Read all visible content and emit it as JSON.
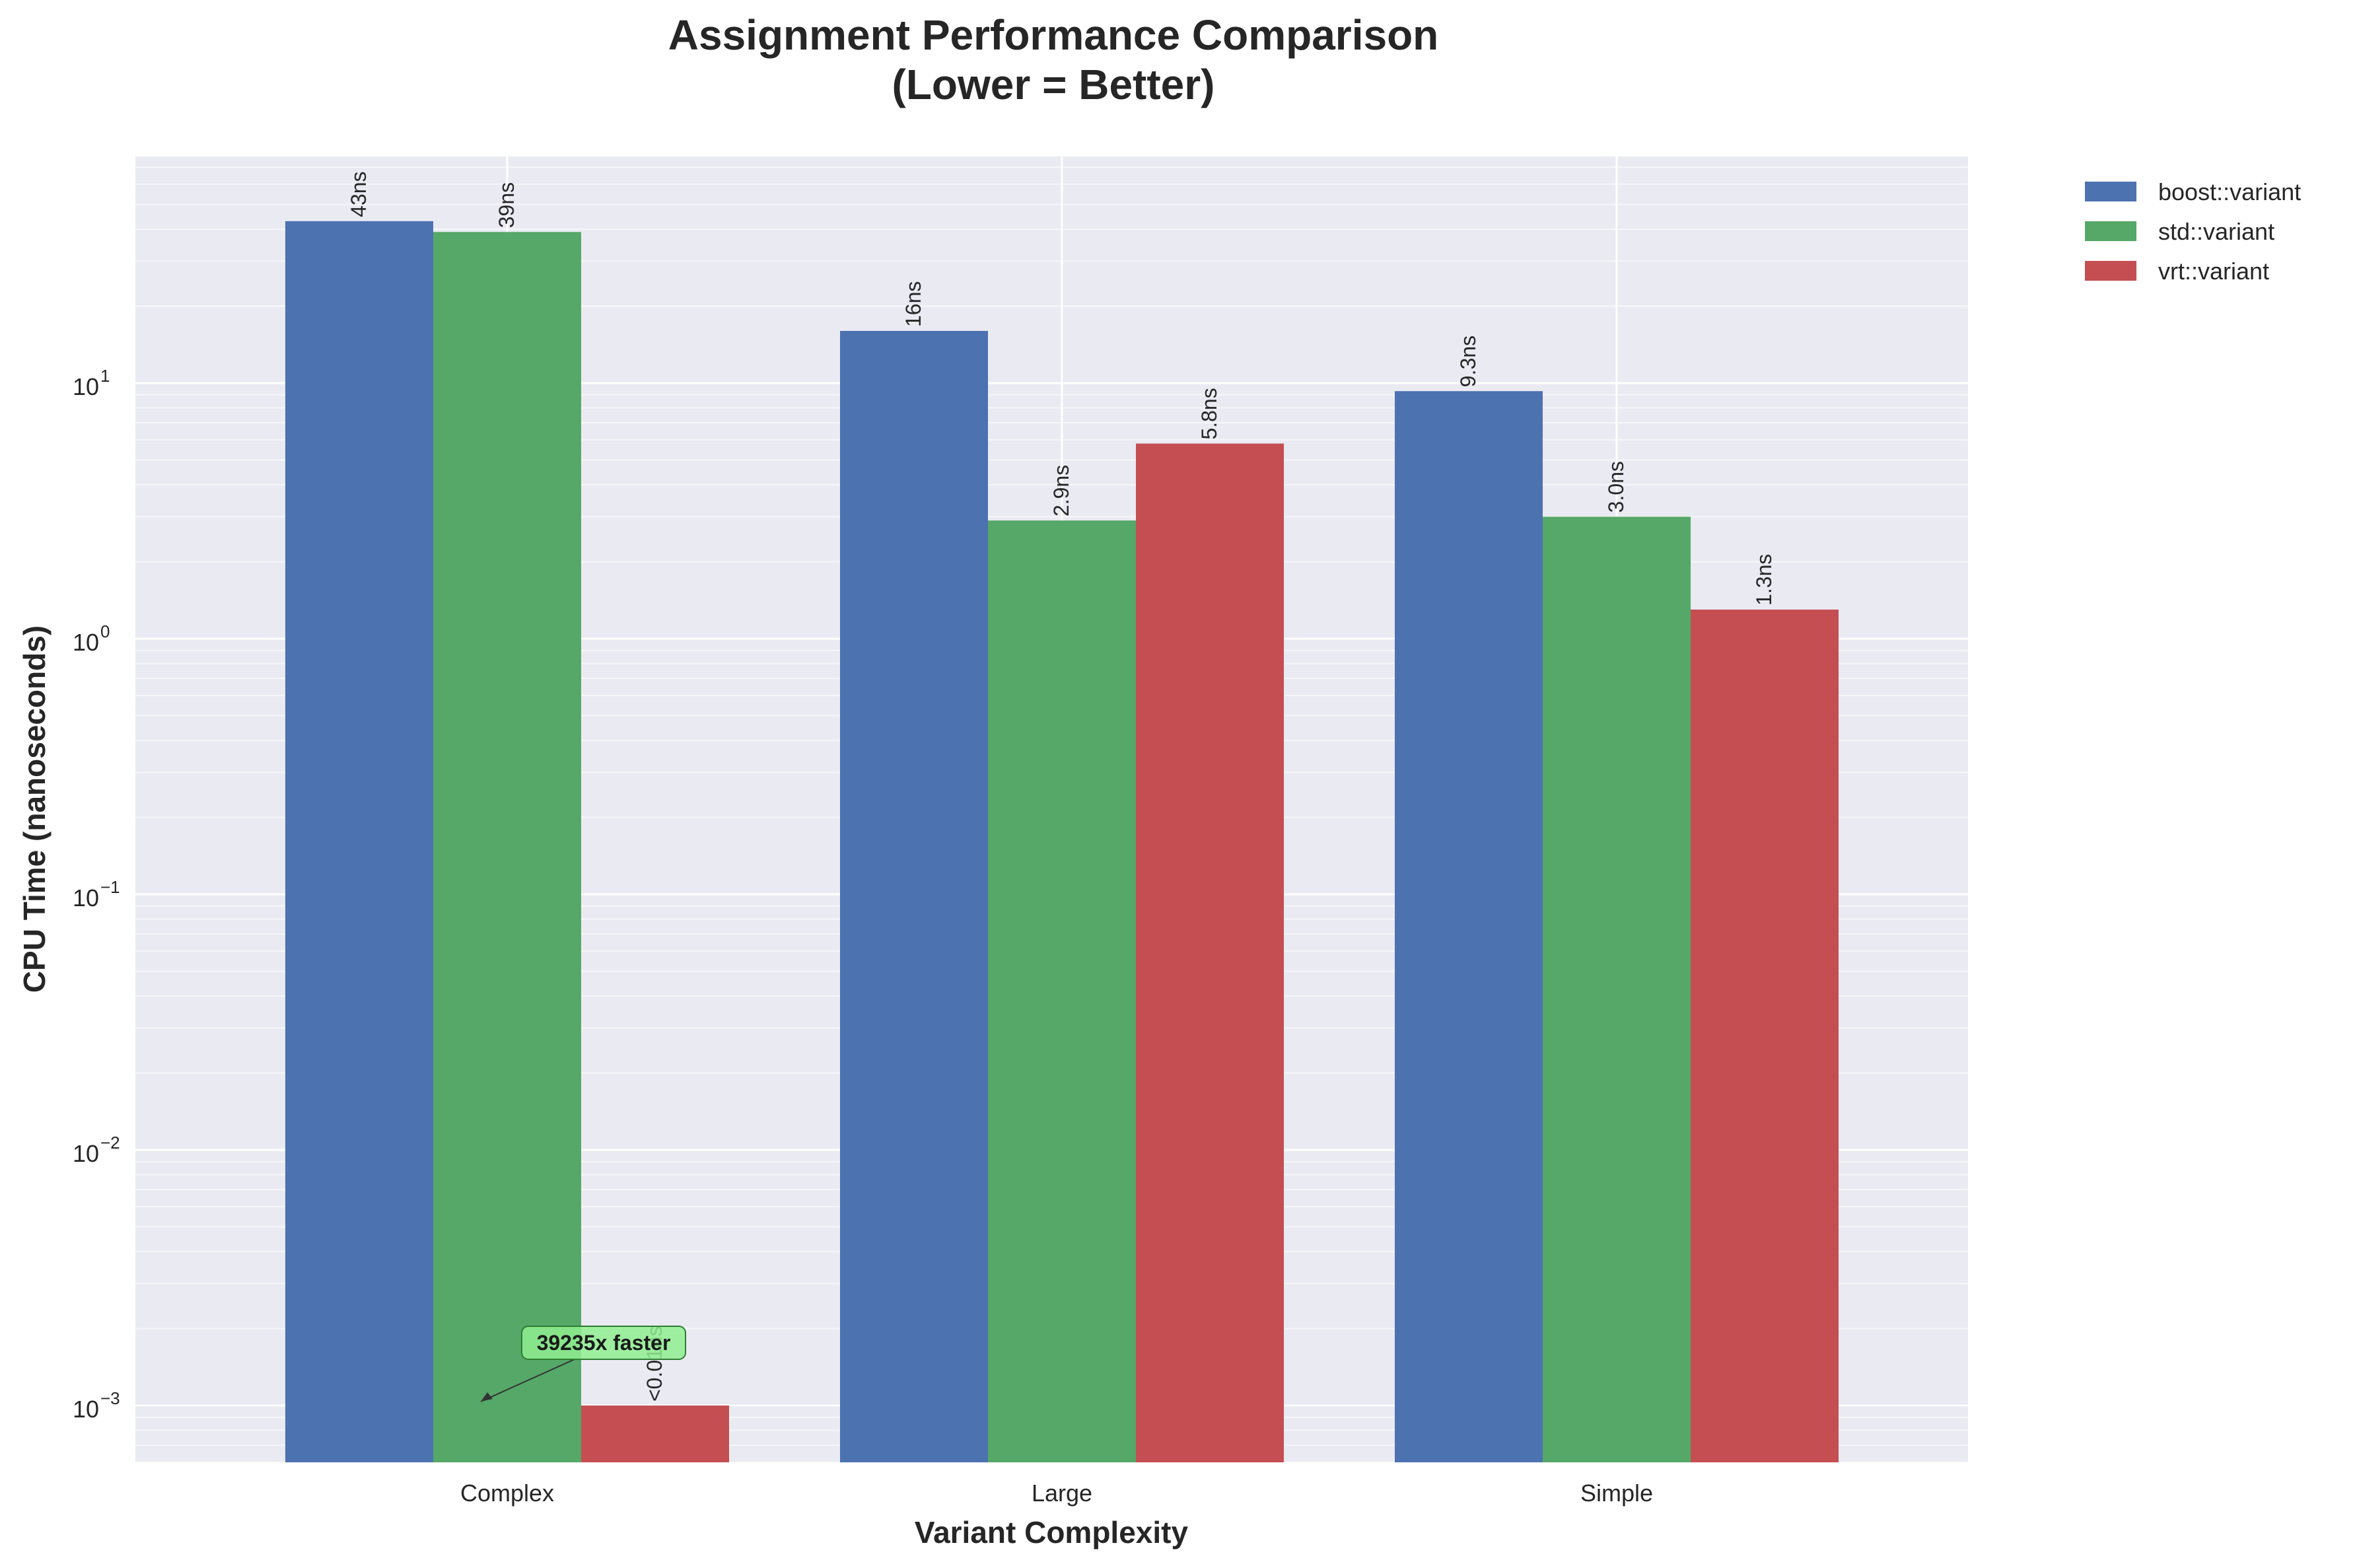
{
  "chart_data": {
    "type": "bar",
    "title_line1": "Assignment Performance Comparison",
    "title_line2": "(Lower = Better)",
    "xlabel": "Variant Complexity",
    "ylabel": "CPU Time (nanoseconds)",
    "yscale": "log",
    "ylim": [
      0.00056,
      80
    ],
    "grid": true,
    "legend_position": "outside top-right",
    "categories": [
      "Complex",
      "Large",
      "Simple"
    ],
    "yticks": [
      {
        "value": 10,
        "base": "10",
        "exp": "1"
      },
      {
        "value": 1,
        "base": "10",
        "exp": "0"
      },
      {
        "value": 0.1,
        "base": "10",
        "exp": "−1"
      },
      {
        "value": 0.01,
        "base": "10",
        "exp": "−2"
      },
      {
        "value": 0.001,
        "base": "10",
        "exp": "−3"
      }
    ],
    "series": [
      {
        "name": "boost::variant",
        "color": "#4c72b0",
        "values": [
          43,
          16,
          9.3
        ],
        "labels": [
          "43ns",
          "16ns",
          "9.3ns"
        ]
      },
      {
        "name": "std::variant",
        "color": "#55a868",
        "values": [
          39,
          2.9,
          3.0
        ],
        "labels": [
          "39ns",
          "2.9ns",
          "3.0ns"
        ]
      },
      {
        "name": "vrt::variant",
        "color": "#c44e52",
        "values": [
          0.001,
          5.8,
          1.3
        ],
        "labels": [
          "<0.01ns",
          "5.8ns",
          "1.3ns"
        ]
      }
    ],
    "annotation": {
      "text": "39235x faster",
      "color": "#90ee90",
      "category": "Complex",
      "arrow_target_value": 0.001
    }
  }
}
